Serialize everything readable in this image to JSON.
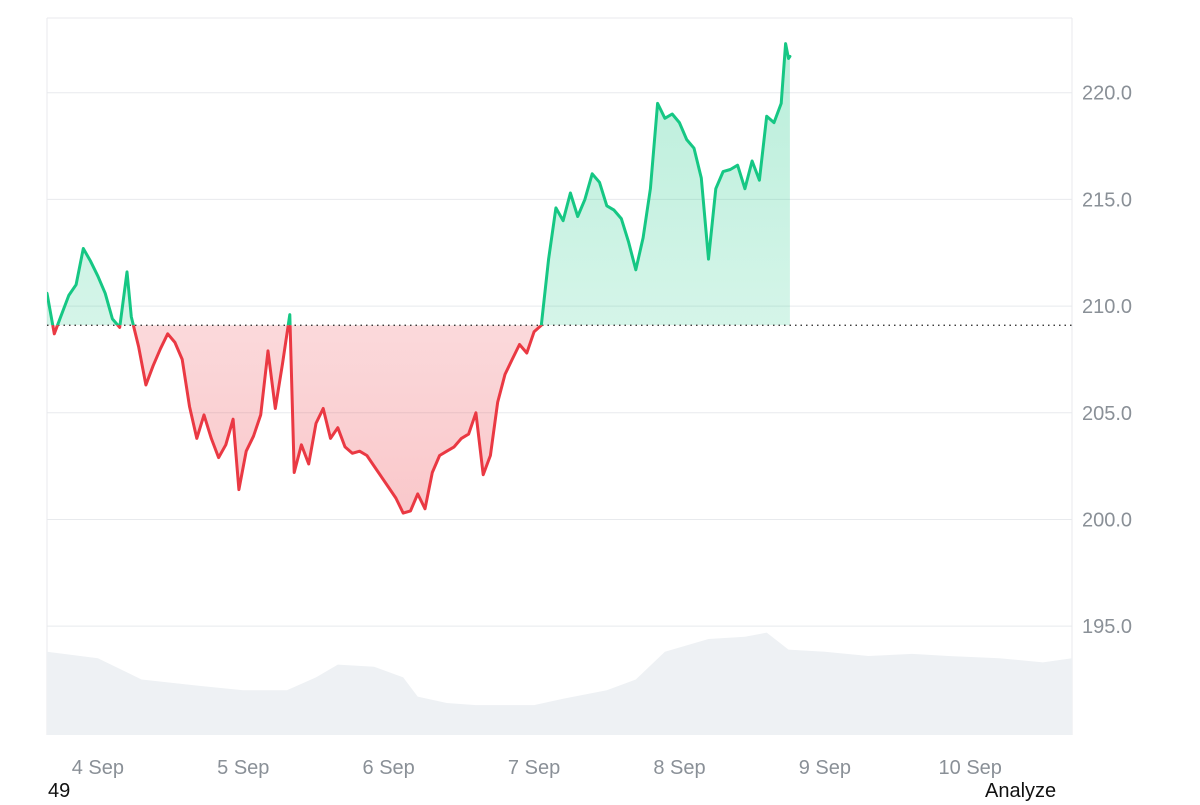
{
  "chart_data": {
    "type": "line",
    "baseline": 209.1,
    "ylim": [
      189.9,
      223.5
    ],
    "yticks": [
      195.0,
      200.0,
      205.0,
      210.0,
      215.0,
      220.0
    ],
    "ytick_labels": [
      "195.0",
      "200.0",
      "205.0",
      "210.0",
      "215.0",
      "220.0"
    ],
    "x_range": [
      3.65,
      10.7
    ],
    "xticks": [
      4,
      5,
      6,
      7,
      8,
      9,
      10
    ],
    "xtick_labels": [
      "4 Sep",
      "5 Sep",
      "6 Sep",
      "7 Sep",
      "8 Sep",
      "9 Sep",
      "10 Sep"
    ],
    "colors": {
      "above": "#16c784",
      "below": "#ea3943",
      "grid": "#e8eaed",
      "volume": "#eef1f4",
      "baseline": "#222222"
    },
    "series": [
      {
        "values": [
          [
            3.65,
            210.6
          ],
          [
            3.7,
            208.7
          ],
          [
            3.75,
            209.6
          ],
          [
            3.8,
            210.5
          ],
          [
            3.85,
            211.0
          ],
          [
            3.9,
            212.7
          ],
          [
            3.95,
            212.1
          ],
          [
            4.0,
            211.4
          ],
          [
            4.05,
            210.6
          ],
          [
            4.1,
            209.4
          ],
          [
            4.15,
            209.0
          ],
          [
            4.2,
            211.6
          ],
          [
            4.23,
            209.5
          ],
          [
            4.28,
            208.1
          ],
          [
            4.33,
            206.3
          ],
          [
            4.38,
            207.2
          ],
          [
            4.43,
            208.0
          ],
          [
            4.48,
            208.7
          ],
          [
            4.53,
            208.3
          ],
          [
            4.58,
            207.5
          ],
          [
            4.63,
            205.3
          ],
          [
            4.68,
            203.8
          ],
          [
            4.73,
            204.9
          ],
          [
            4.78,
            203.8
          ],
          [
            4.83,
            202.9
          ],
          [
            4.88,
            203.5
          ],
          [
            4.93,
            204.7
          ],
          [
            4.97,
            201.4
          ],
          [
            5.02,
            203.2
          ],
          [
            5.07,
            203.9
          ],
          [
            5.12,
            204.9
          ],
          [
            5.17,
            207.9
          ],
          [
            5.22,
            205.2
          ],
          [
            5.27,
            207.3
          ],
          [
            5.32,
            209.6
          ],
          [
            5.35,
            202.2
          ],
          [
            5.4,
            203.5
          ],
          [
            5.45,
            202.6
          ],
          [
            5.5,
            204.5
          ],
          [
            5.55,
            205.2
          ],
          [
            5.6,
            203.8
          ],
          [
            5.65,
            204.3
          ],
          [
            5.7,
            203.4
          ],
          [
            5.75,
            203.1
          ],
          [
            5.8,
            203.2
          ],
          [
            5.85,
            203.0
          ],
          [
            5.9,
            202.5
          ],
          [
            5.95,
            202.0
          ],
          [
            6.0,
            201.5
          ],
          [
            6.05,
            201.0
          ],
          [
            6.1,
            200.3
          ],
          [
            6.15,
            200.4
          ],
          [
            6.2,
            201.2
          ],
          [
            6.25,
            200.5
          ],
          [
            6.3,
            202.2
          ],
          [
            6.35,
            203.0
          ],
          [
            6.4,
            203.2
          ],
          [
            6.45,
            203.4
          ],
          [
            6.5,
            203.8
          ],
          [
            6.55,
            204.0
          ],
          [
            6.6,
            205.0
          ],
          [
            6.65,
            202.1
          ],
          [
            6.7,
            203.0
          ],
          [
            6.75,
            205.5
          ],
          [
            6.8,
            206.8
          ],
          [
            6.85,
            207.5
          ],
          [
            6.9,
            208.2
          ],
          [
            6.95,
            207.8
          ],
          [
            7.0,
            208.8
          ],
          [
            7.05,
            209.1
          ],
          [
            7.1,
            212.2
          ],
          [
            7.15,
            214.6
          ],
          [
            7.2,
            214.0
          ],
          [
            7.25,
            215.3
          ],
          [
            7.3,
            214.2
          ],
          [
            7.35,
            215.0
          ],
          [
            7.4,
            216.2
          ],
          [
            7.45,
            215.8
          ],
          [
            7.5,
            214.7
          ],
          [
            7.55,
            214.5
          ],
          [
            7.6,
            214.1
          ],
          [
            7.65,
            213.0
          ],
          [
            7.7,
            211.7
          ],
          [
            7.75,
            213.2
          ],
          [
            7.8,
            215.5
          ],
          [
            7.85,
            219.5
          ],
          [
            7.9,
            218.8
          ],
          [
            7.95,
            219.0
          ],
          [
            8.0,
            218.6
          ],
          [
            8.05,
            217.8
          ],
          [
            8.1,
            217.4
          ],
          [
            8.15,
            216.0
          ],
          [
            8.2,
            212.2
          ],
          [
            8.25,
            215.5
          ],
          [
            8.3,
            216.3
          ],
          [
            8.35,
            216.4
          ],
          [
            8.4,
            216.6
          ],
          [
            8.45,
            215.5
          ],
          [
            8.5,
            216.8
          ],
          [
            8.55,
            215.9
          ],
          [
            8.6,
            218.9
          ],
          [
            8.65,
            218.6
          ],
          [
            8.7,
            219.5
          ],
          [
            8.73,
            222.3
          ],
          [
            8.75,
            221.6
          ],
          [
            8.76,
            221.7
          ]
        ]
      }
    ],
    "volume": [
      [
        3.65,
        193.8
      ],
      [
        4.0,
        193.5
      ],
      [
        4.3,
        192.5
      ],
      [
        4.7,
        192.2
      ],
      [
        5.0,
        192.0
      ],
      [
        5.3,
        192.0
      ],
      [
        5.5,
        192.6
      ],
      [
        5.65,
        193.2
      ],
      [
        5.9,
        193.1
      ],
      [
        6.1,
        192.6
      ],
      [
        6.2,
        191.7
      ],
      [
        6.4,
        191.4
      ],
      [
        6.6,
        191.3
      ],
      [
        7.0,
        191.3
      ],
      [
        7.2,
        191.6
      ],
      [
        7.5,
        192.0
      ],
      [
        7.7,
        192.5
      ],
      [
        7.9,
        193.8
      ],
      [
        8.2,
        194.4
      ],
      [
        8.45,
        194.5
      ],
      [
        8.6,
        194.7
      ],
      [
        8.75,
        193.9
      ],
      [
        9.0,
        193.8
      ],
      [
        9.3,
        193.6
      ],
      [
        9.6,
        193.7
      ],
      [
        9.85,
        193.6
      ],
      [
        10.2,
        193.5
      ],
      [
        10.5,
        193.3
      ],
      [
        10.7,
        193.5
      ]
    ]
  },
  "footer": {
    "left_text": "49",
    "right_text": "Analyze"
  }
}
